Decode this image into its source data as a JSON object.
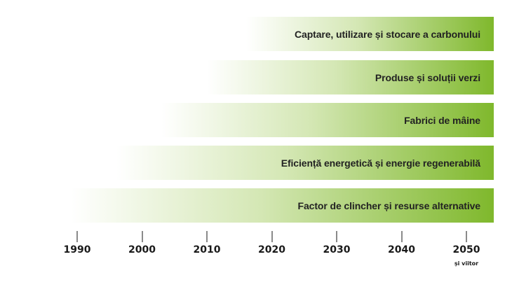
{
  "colors": {
    "band_end": "#7fb82c",
    "band_mid": "#d4e7b4",
    "band_start": "#ffffff",
    "label": "#222222",
    "tick": "#8a8a8a",
    "axis_text": "#1a1a1a"
  },
  "axis": {
    "start_year": 1990,
    "end_year": 2050,
    "ticks": [
      {
        "year": 1990,
        "label": "1990"
      },
      {
        "year": 2000,
        "label": "2000"
      },
      {
        "year": 2010,
        "label": "2010"
      },
      {
        "year": 2020,
        "label": "2020"
      },
      {
        "year": 2030,
        "label": "2030"
      },
      {
        "year": 2040,
        "label": "2040"
      },
      {
        "year": 2050,
        "label": "2050"
      }
    ],
    "end_note": "și viitor"
  },
  "bands": [
    {
      "label": "Captare, utilizare și stocare a carbonului",
      "start_year": 2016
    },
    {
      "label": "Produse și soluții verzi",
      "start_year": 2010
    },
    {
      "label": "Fabrici de mâine",
      "start_year": 2003
    },
    {
      "label": "Eficiență energetică și energie regenerabilă",
      "start_year": 1996
    },
    {
      "label": "Factor de clincher și resurse alternative",
      "start_year": 1989
    }
  ]
}
